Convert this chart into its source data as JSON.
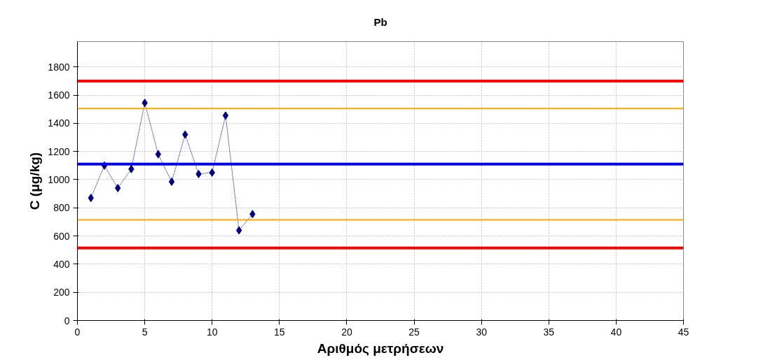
{
  "chart_data": {
    "type": "line",
    "title": "Pb",
    "xlabel": "Αριθμός μετρήσεων",
    "ylabel": "C (μg/kg)",
    "x": [
      1,
      2,
      3,
      4,
      5,
      6,
      7,
      8,
      9,
      10,
      11,
      12,
      13
    ],
    "series": [
      {
        "color": "#000080",
        "values": [
          870,
          1100,
          940,
          1075,
          1545,
          1180,
          985,
          1320,
          1040,
          1050,
          1455,
          640,
          755
        ]
      }
    ],
    "marker": "diamond",
    "line_style": "dotted",
    "grid": true,
    "xlim": [
      0,
      45
    ],
    "xticks": [
      0,
      5,
      10,
      15,
      20,
      25,
      30,
      35,
      40,
      45
    ],
    "ylim": [
      0,
      1980
    ],
    "yticks": [
      0,
      200,
      400,
      600,
      800,
      1000,
      1200,
      1400,
      1600,
      1800
    ],
    "ref_lines": [
      {
        "axis": "y",
        "value": 1700,
        "color": "#ff0000"
      },
      {
        "axis": "y",
        "value": 1505,
        "color": "#ffa500"
      },
      {
        "axis": "y",
        "value": 1110,
        "color": "#0000ff"
      },
      {
        "axis": "y",
        "value": 715,
        "color": "#ffa500"
      },
      {
        "axis": "y",
        "value": 515,
        "color": "#ff0000"
      }
    ]
  }
}
